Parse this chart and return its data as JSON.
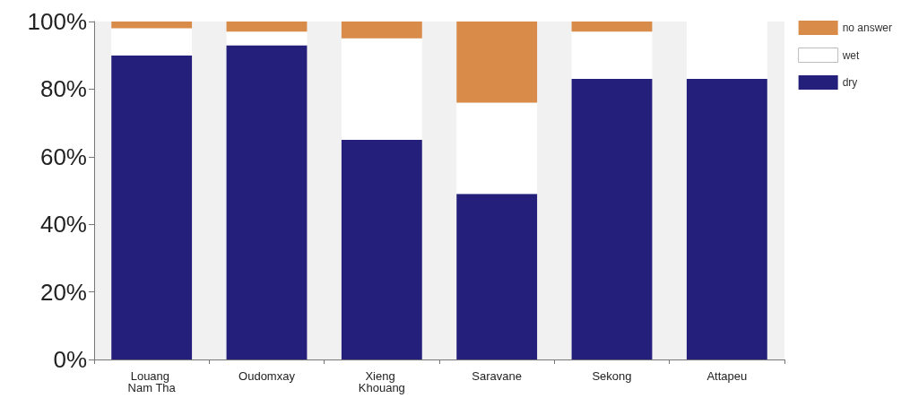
{
  "chart_data": {
    "type": "bar",
    "stacked": true,
    "categories": [
      "Louang Nam Tha",
      "Oudomxay",
      "Xieng Khouang",
      "Saravane",
      "Sekong",
      "Attapeu"
    ],
    "series": [
      {
        "name": "dry",
        "color": "#231f7a",
        "values": [
          90,
          93,
          65,
          49,
          83,
          83
        ]
      },
      {
        "name": "wet",
        "color": "#ffffff",
        "values": [
          8,
          4,
          30,
          27,
          14,
          17
        ]
      },
      {
        "name": "no answer",
        "color": "#d98c4a",
        "values": [
          2,
          3,
          5,
          24,
          3,
          0
        ]
      }
    ],
    "ylim": [
      0,
      100
    ],
    "yticks": [
      {
        "value": 0,
        "label": "0%"
      },
      {
        "value": 20,
        "label": "20%"
      },
      {
        "value": 40,
        "label": "40%"
      },
      {
        "value": 60,
        "label": "60%"
      },
      {
        "value": 80,
        "label": "80%"
      },
      {
        "value": 100,
        "label": "100%"
      }
    ],
    "grid": false,
    "legend": "top right"
  }
}
